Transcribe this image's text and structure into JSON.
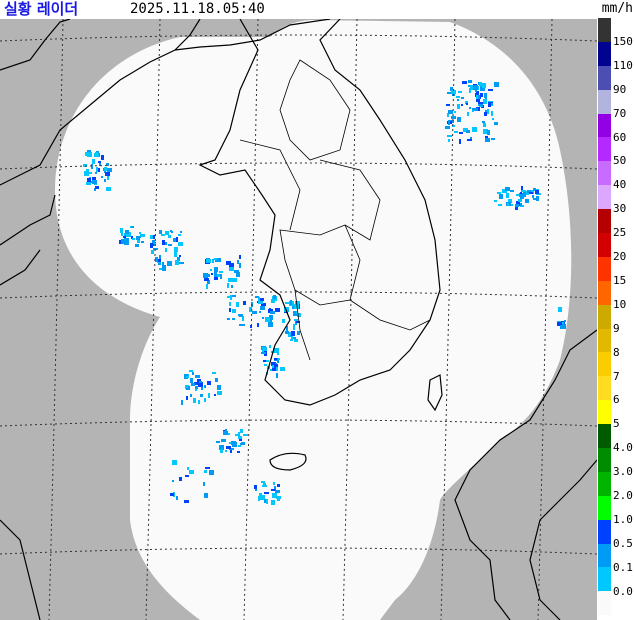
{
  "header": {
    "title": "실황 레이더",
    "timestamp": "2025.11.18.05:40",
    "unit": "mm/h"
  },
  "colors": {
    "out_of_range": "#b4b4b4",
    "coverage": "#fafafa",
    "grid": "#333333",
    "coast": "#000000"
  },
  "legend": {
    "bins": [
      "#333333",
      "#000390",
      "#4c4eb1",
      "#b3b4de",
      "#9300e4",
      "#b329ff",
      "#c86bff",
      "#dca8ff",
      "#b40000",
      "#d20000",
      "#ff3300",
      "#ff6600",
      "#ccaa00",
      "#e0b900",
      "#f9cd00",
      "#ffdc1f",
      "#ffff00",
      "#005a00",
      "#008c00",
      "#00b400",
      "#00fe00",
      "#0040ff",
      "#009bf5",
      "#00c8ff",
      "#fafafa"
    ],
    "labels": [
      "150",
      "110",
      "90",
      "70",
      "60",
      "50",
      "40",
      "30",
      "25",
      "20",
      "15",
      "10",
      "9",
      "8",
      "7",
      "6",
      "5",
      "4.0",
      "3.0",
      "2.0",
      "1.0",
      "0.5",
      "0.1",
      "0.0"
    ]
  }
}
